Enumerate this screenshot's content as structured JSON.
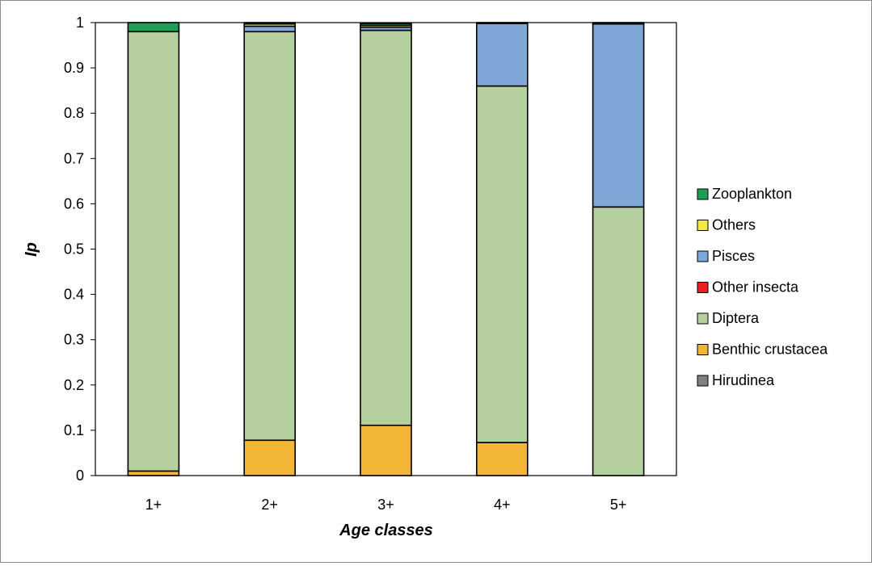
{
  "chart_data": {
    "type": "bar",
    "stacked": true,
    "title": "",
    "xlabel": "Age classes",
    "ylabel": "Ip",
    "ylim": [
      0,
      1
    ],
    "yticks": [
      "0",
      "0.1",
      "0.2",
      "0.3",
      "0.4",
      "0.5",
      "0.6",
      "0.7",
      "0.8",
      "0.9",
      "1"
    ],
    "categories": [
      "1+",
      "2+",
      "3+",
      "4+",
      "5+"
    ],
    "grid": false,
    "legend_position": "right",
    "series": [
      {
        "name": "Hirudinea",
        "color": "#808080",
        "values": [
          0,
          0,
          0,
          0,
          0
        ]
      },
      {
        "name": "Benthic crustacea",
        "color": "#f3b535",
        "values": [
          0.01,
          0.078,
          0.111,
          0.073,
          0
        ]
      },
      {
        "name": "Diptera",
        "color": "#b6cf9e",
        "values": [
          0.97,
          0.902,
          0.872,
          0.787,
          0.593
        ]
      },
      {
        "name": "Other insecta",
        "color": "#e8211f",
        "values": [
          0,
          0,
          0,
          0,
          0
        ]
      },
      {
        "name": "Pisces",
        "color": "#7ea7d8",
        "values": [
          0,
          0.012,
          0.007,
          0.138,
          0.404
        ]
      },
      {
        "name": "Others",
        "color": "#f2e84a",
        "values": [
          0,
          0.005,
          0.004,
          0,
          0
        ]
      },
      {
        "name": "Zooplankton",
        "color": "#1e9f55",
        "values": [
          0.02,
          0.003,
          0.004,
          0.002,
          0.003
        ]
      }
    ],
    "legend_order": [
      "Zooplankton",
      "Others",
      "Pisces",
      "Other insecta",
      "Diptera",
      "Benthic crustacea",
      "Hirudinea"
    ]
  }
}
